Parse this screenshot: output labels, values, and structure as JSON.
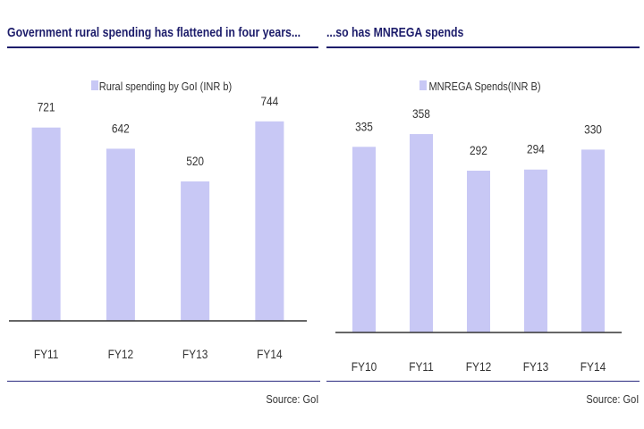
{
  "chart_data": [
    {
      "type": "bar",
      "title": "Government rural spending has flattened in four years...",
      "legend": "Rural spending by GoI (INR b)",
      "categories": [
        "FY11",
        "FY12",
        "FY13",
        "FY14"
      ],
      "series": [
        {
          "name": "Rural spending by GoI (INR b)",
          "values": [
            721,
            642,
            520,
            744
          ]
        }
      ],
      "ylim": [
        0,
        800
      ],
      "grid": false,
      "legend_position": "top",
      "bar_color": "#c8c8f5",
      "source": "Source: GoI"
    },
    {
      "type": "bar",
      "title": "...so has MNREGA spends",
      "legend": "MNREGA Spends(INR B)",
      "categories": [
        "FY10",
        "FY11",
        "FY12",
        "FY13",
        "FY14"
      ],
      "series": [
        {
          "name": "MNREGA Spends(INR B)",
          "values": [
            335,
            358,
            292,
            294,
            330
          ]
        }
      ],
      "ylim": [
        0,
        400
      ],
      "grid": false,
      "legend_position": "top",
      "bar_color": "#c8c8f5",
      "source": "Source: GoI"
    }
  ],
  "colors": {
    "title": "#1d1d6b",
    "bar": "#c8c8f5"
  }
}
